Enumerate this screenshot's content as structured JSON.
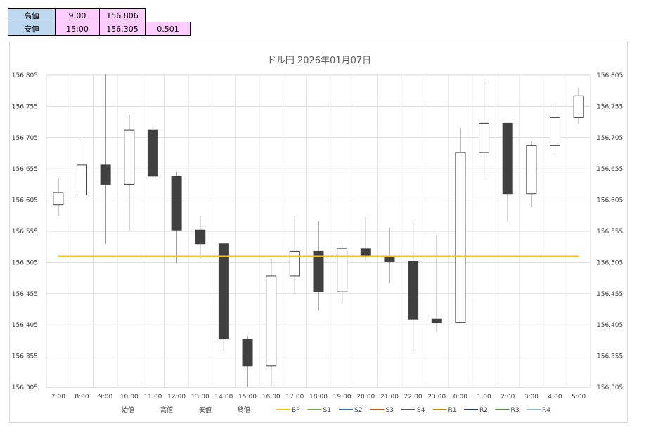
{
  "summary": {
    "high": {
      "label": "高値",
      "time": "9:00",
      "price": "156.806"
    },
    "low": {
      "label": "安値",
      "time": "15:00",
      "price": "156.305",
      "diff": "0.501"
    }
  },
  "chart_data": {
    "type": "candlestick",
    "title": "ドル円  2026年01月07日",
    "ylim": [
      156.305,
      156.805
    ],
    "y_ticks": [
      "156.805",
      "156.755",
      "156.705",
      "156.655",
      "156.605",
      "156.555",
      "156.505",
      "156.455",
      "156.405",
      "156.355",
      "156.305"
    ],
    "categories": [
      "7:00",
      "8:00",
      "9:00",
      "10:00",
      "11:00",
      "12:00",
      "13:00",
      "14:00",
      "15:00",
      "16:00",
      "17:00",
      "18:00",
      "19:00",
      "20:00",
      "21:00",
      "22:00",
      "23:00",
      "0:00",
      "1:00",
      "2:00",
      "3:00",
      "4:00",
      "5:00"
    ],
    "candles": [
      {
        "open": 156.597,
        "high": 156.64,
        "low": 156.579,
        "close": 156.617
      },
      {
        "open": 156.613,
        "high": 156.701,
        "low": 156.613,
        "close": 156.661
      },
      {
        "open": 156.661,
        "high": 156.806,
        "low": 156.535,
        "close": 156.63
      },
      {
        "open": 156.63,
        "high": 156.742,
        "low": 156.556,
        "close": 156.717
      },
      {
        "open": 156.717,
        "high": 156.726,
        "low": 156.639,
        "close": 156.643
      },
      {
        "open": 156.643,
        "high": 156.65,
        "low": 156.504,
        "close": 156.557
      },
      {
        "open": 156.557,
        "high": 156.58,
        "low": 156.511,
        "close": 156.535
      },
      {
        "open": 156.535,
        "high": 156.535,
        "low": 156.363,
        "close": 156.382
      },
      {
        "open": 156.382,
        "high": 156.387,
        "low": 156.305,
        "close": 156.339
      },
      {
        "open": 156.339,
        "high": 156.51,
        "low": 156.307,
        "close": 156.483
      },
      {
        "open": 156.483,
        "high": 156.58,
        "low": 156.454,
        "close": 156.523
      },
      {
        "open": 156.523,
        "high": 156.571,
        "low": 156.428,
        "close": 156.458
      },
      {
        "open": 156.458,
        "high": 156.532,
        "low": 156.44,
        "close": 156.527
      },
      {
        "open": 156.527,
        "high": 156.578,
        "low": 156.508,
        "close": 156.514
      },
      {
        "open": 156.514,
        "high": 156.561,
        "low": 156.472,
        "close": 156.506
      },
      {
        "open": 156.507,
        "high": 156.571,
        "low": 156.359,
        "close": 156.414
      },
      {
        "open": 156.414,
        "high": 156.549,
        "low": 156.392,
        "close": 156.408
      },
      {
        "open": 156.409,
        "high": 156.721,
        "low": 156.409,
        "close": 156.681
      },
      {
        "open": 156.681,
        "high": 156.796,
        "low": 156.638,
        "close": 156.728
      },
      {
        "open": 156.728,
        "high": 156.728,
        "low": 156.571,
        "close": 156.615
      },
      {
        "open": 156.615,
        "high": 156.7,
        "low": 156.594,
        "close": 156.692
      },
      {
        "open": 156.692,
        "high": 156.757,
        "low": 156.681,
        "close": 156.737
      },
      {
        "open": 156.737,
        "high": 156.785,
        "low": 156.726,
        "close": 156.772
      }
    ],
    "bp_line": {
      "name": "BP",
      "value": 156.515,
      "color": "#ffc000"
    },
    "legend": [
      {
        "name": "始値",
        "kind": "none",
        "color": ""
      },
      {
        "name": "高値",
        "kind": "none",
        "color": ""
      },
      {
        "name": "安値",
        "kind": "none",
        "color": ""
      },
      {
        "name": "終値",
        "kind": "none",
        "color": ""
      },
      {
        "name": "BP",
        "kind": "line",
        "color": "#ffc000"
      },
      {
        "name": "S1",
        "kind": "line",
        "color": "#70ad47"
      },
      {
        "name": "S2",
        "kind": "line",
        "color": "#2e75b6"
      },
      {
        "name": "S3",
        "kind": "line",
        "color": "#c55a11"
      },
      {
        "name": "S4",
        "kind": "line",
        "color": "#595959"
      },
      {
        "name": "R1",
        "kind": "line",
        "color": "#bf8f00"
      },
      {
        "name": "R2",
        "kind": "line",
        "color": "#203864"
      },
      {
        "name": "R3",
        "kind": "line",
        "color": "#548235"
      },
      {
        "name": "R4",
        "kind": "line",
        "color": "#8fbce6"
      }
    ],
    "colors": {
      "bear": "#404040",
      "bull": "#ffffff",
      "wick": "#595959",
      "grid": "#d9d9d9"
    }
  }
}
